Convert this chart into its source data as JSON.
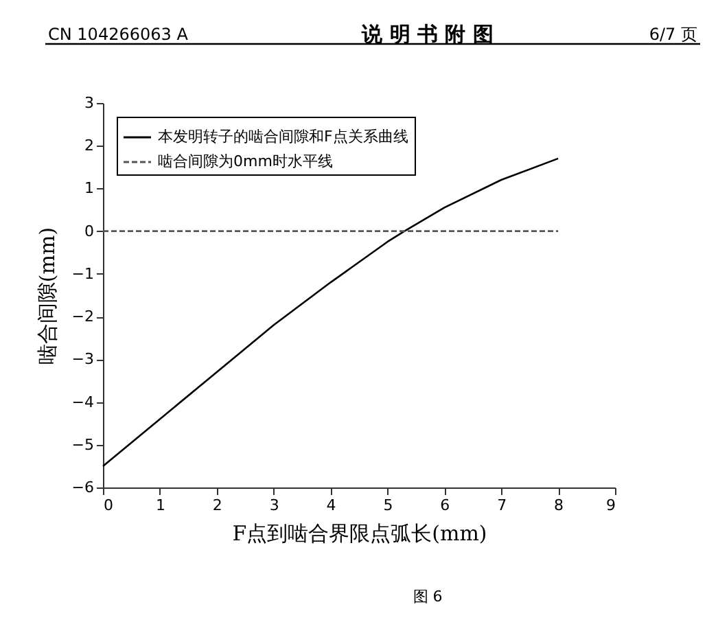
{
  "chart_data": {
    "type": "line",
    "xlabel": "F点到啮合界限点弧长(mm)",
    "ylabel": "啮合间隙(mm)",
    "annotations": [
      "CN 104266063 A",
      "说 明 书 附 图",
      "6/7 页",
      "图 6"
    ],
    "series": [
      {
        "name": "本发明转子的啮合间隙和F点关系曲线",
        "color": "#000000",
        "line_style": "solid",
        "x": [
          0,
          1,
          2,
          3,
          4,
          5,
          5.3,
          6,
          7,
          8
        ],
        "values": [
          -5.5,
          -4.4,
          -3.3,
          -2.2,
          -1.2,
          -0.25,
          0,
          0.55,
          1.2,
          1.7
        ]
      },
      {
        "name": "啮合间隙为0mm时水平线",
        "color": "#555555",
        "line_style": "dashed",
        "x": [
          0,
          8
        ],
        "values": [
          0,
          0
        ]
      }
    ],
    "xlim": [
      0,
      9
    ],
    "ylim": [
      -6,
      3
    ],
    "xticks": [
      0,
      1,
      2,
      3,
      4,
      5,
      6,
      7,
      8,
      9
    ],
    "yticks": [
      -6,
      -5,
      -4,
      -3,
      -2,
      -1,
      0,
      1,
      2,
      3
    ],
    "grid": false,
    "legend": "top left",
    "marker": "none"
  }
}
